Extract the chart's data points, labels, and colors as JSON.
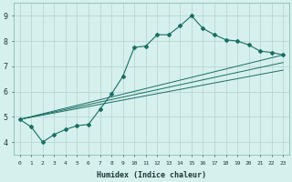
{
  "title": "",
  "xlabel": "Humidex (Indice chaleur)",
  "ylabel": "",
  "xlim": [
    -0.5,
    23.5
  ],
  "ylim": [
    3.5,
    9.5
  ],
  "xtick_values": [
    0,
    1,
    2,
    3,
    4,
    5,
    6,
    7,
    8,
    9,
    10,
    11,
    12,
    13,
    14,
    15,
    16,
    17,
    18,
    19,
    20,
    21,
    22,
    23
  ],
  "xtick_labels": [
    "0",
    "1",
    "2",
    "3",
    "4",
    "5",
    "6",
    "7",
    "8",
    "9",
    "10",
    "11",
    "12",
    "13",
    "14",
    "15",
    "16",
    "17",
    "18",
    "19",
    "20",
    "21",
    "22",
    "23"
  ],
  "ytick_values": [
    4,
    5,
    6,
    7,
    8,
    9
  ],
  "background_color": "#d6f0ee",
  "grid_color": "#b8d8d4",
  "line_color": "#1a6e62",
  "main_series_x": [
    0,
    1,
    2,
    3,
    4,
    5,
    6,
    7,
    8,
    9,
    10,
    11,
    12,
    13,
    14,
    15,
    16,
    17,
    18,
    19,
    20,
    21,
    22,
    23
  ],
  "main_series_y": [
    4.9,
    4.6,
    4.0,
    4.3,
    4.5,
    4.65,
    4.7,
    5.3,
    5.9,
    6.6,
    7.75,
    7.8,
    8.25,
    8.25,
    8.6,
    9.0,
    8.5,
    8.25,
    8.05,
    8.0,
    7.85,
    7.6,
    7.55,
    7.45
  ],
  "straight_lines": [
    {
      "x": [
        0,
        23
      ],
      "y": [
        4.9,
        7.45
      ]
    },
    {
      "x": [
        0,
        23
      ],
      "y": [
        4.9,
        7.45
      ]
    },
    {
      "x": [
        0,
        23
      ],
      "y": [
        4.9,
        7.45
      ]
    }
  ]
}
